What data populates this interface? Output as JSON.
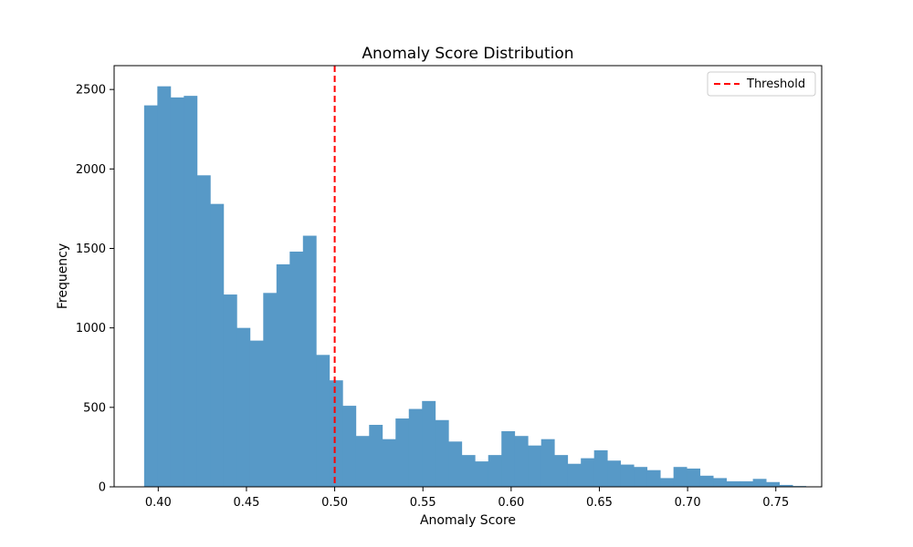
{
  "chart_data": {
    "type": "bar",
    "title": "Anomaly Score Distribution",
    "xlabel": "Anomaly Score",
    "ylabel": "Frequency",
    "xlim": [
      0.375,
      0.776
    ],
    "ylim": [
      0,
      2650
    ],
    "x_ticks": [
      0.4,
      0.45,
      0.5,
      0.55,
      0.6,
      0.65,
      0.7,
      0.75
    ],
    "x_tick_labels": [
      "0.40",
      "0.45",
      "0.50",
      "0.55",
      "0.60",
      "0.65",
      "0.70",
      "0.75"
    ],
    "y_ticks": [
      0,
      500,
      1000,
      1500,
      2000,
      2500
    ],
    "y_tick_labels": [
      "0",
      "500",
      "1000",
      "1500",
      "2000",
      "2500"
    ],
    "bin_start": 0.392,
    "bin_width": 0.0075,
    "counts": [
      2400,
      2520,
      2450,
      2460,
      1960,
      1780,
      1210,
      1000,
      920,
      1220,
      1400,
      1480,
      1580,
      830,
      670,
      510,
      320,
      390,
      300,
      430,
      490,
      540,
      420,
      285,
      200,
      160,
      200,
      350,
      320,
      260,
      300,
      200,
      145,
      180,
      230,
      165,
      140,
      125,
      105,
      55,
      125,
      115,
      70,
      55,
      35,
      35,
      50,
      30,
      12,
      5
    ],
    "bar_color": "#5799c7",
    "threshold": {
      "label": "Threshold",
      "x": 0.5,
      "color": "#ff0000",
      "style": "dashed"
    },
    "legend_position": "top-right",
    "grid": false
  }
}
